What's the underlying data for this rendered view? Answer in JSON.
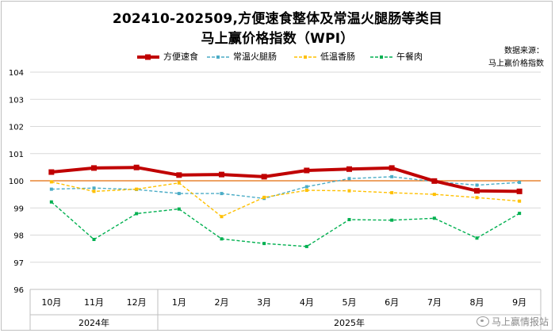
{
  "title_line1": "202410-202509,方便速食整体及常温火腿肠等类目",
  "title_line2": "马上赢价格指数（WPI）",
  "source_line1": "数据来源：",
  "source_line2": "马上赢价格指数",
  "watermark": "马上赢情报站",
  "chart_data": {
    "type": "line",
    "categories": [
      "10月",
      "11月",
      "12月",
      "1月",
      "2月",
      "3月",
      "4月",
      "5月",
      "6月",
      "7月",
      "8月",
      "9月"
    ],
    "year_groups": [
      {
        "label": "2024年",
        "count": 3
      },
      {
        "label": "2025年",
        "count": 9
      }
    ],
    "yticks": [
      "96",
      "97",
      "98",
      "99",
      "100",
      "101",
      "102",
      "103",
      "104"
    ],
    "ylim": [
      96,
      104
    ],
    "reference_line": {
      "value": 100,
      "color": "#e36c09"
    },
    "legend_placement": "top",
    "series": [
      {
        "name": "方便速食",
        "color": "#c00000",
        "style": "solid-thick",
        "values": [
          100.32,
          100.47,
          100.49,
          100.21,
          100.23,
          100.15,
          100.38,
          100.43,
          100.47,
          99.99,
          99.63,
          99.61
        ]
      },
      {
        "name": "常温火腿肠",
        "color": "#4bacc6",
        "style": "dashed",
        "values": [
          99.69,
          99.73,
          99.68,
          99.53,
          99.53,
          99.35,
          99.78,
          100.08,
          100.15,
          99.97,
          99.84,
          99.94
        ]
      },
      {
        "name": "低温香肠",
        "color": "#ffc000",
        "style": "dashed",
        "values": [
          99.96,
          99.61,
          99.69,
          99.92,
          98.68,
          99.39,
          99.65,
          99.63,
          99.56,
          99.5,
          99.38,
          99.25
        ]
      },
      {
        "name": "午餐肉",
        "color": "#00b050",
        "style": "dashed",
        "values": [
          99.22,
          97.84,
          98.79,
          98.96,
          97.86,
          97.69,
          97.58,
          98.57,
          98.55,
          98.62,
          97.89,
          98.8
        ]
      }
    ]
  }
}
